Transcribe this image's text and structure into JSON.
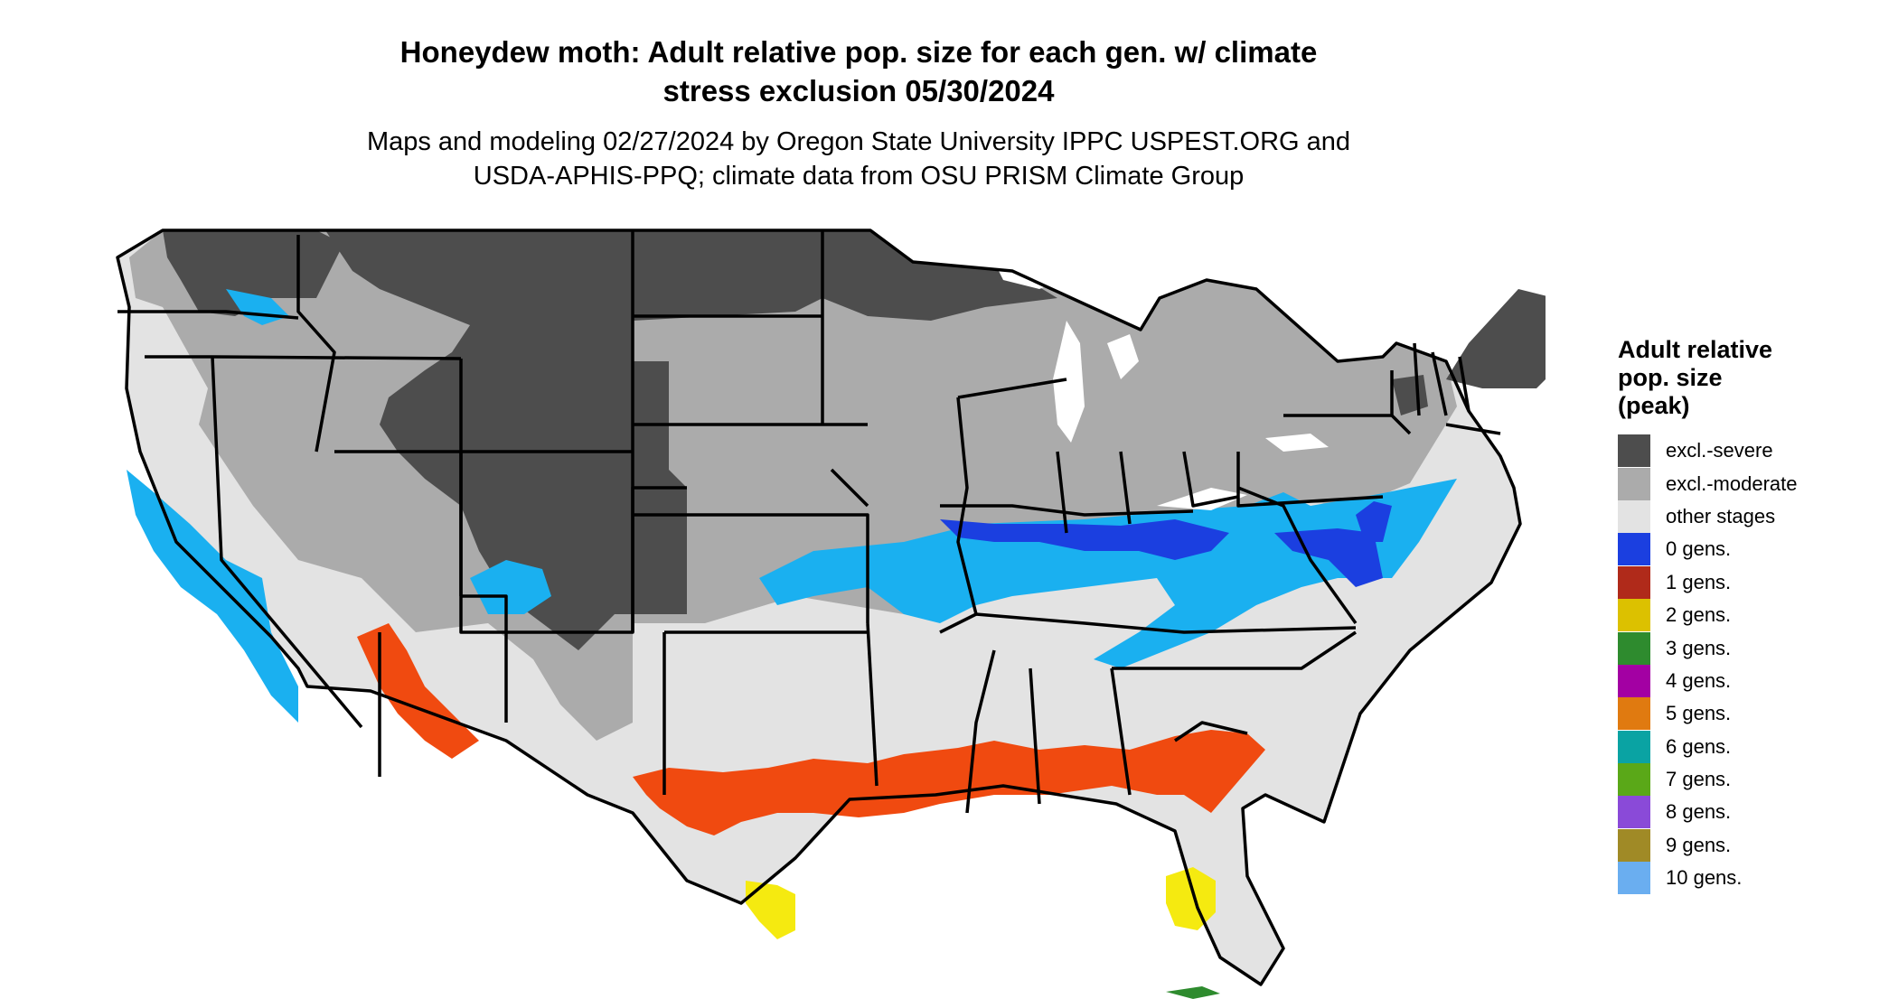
{
  "title_line1": "Honeydew moth: Adult relative pop. size for each gen. w/ climate",
  "title_line2": "stress exclusion 05/30/2024",
  "subtitle_line1": "Maps and modeling 02/27/2024 by Oregon State University IPPC USPEST.ORG and",
  "subtitle_line2": "USDA-APHIS-PPQ; climate data from OSU PRISM Climate Group",
  "legend": {
    "title_lines": [
      "Adult relative",
      "pop. size",
      "(peak)"
    ],
    "items": [
      {
        "label": "excl.-severe",
        "color": "#4d4d4d"
      },
      {
        "label": "excl.-moderate",
        "color": "#ababab"
      },
      {
        "label": "other stages",
        "color": "#e3e3e3"
      },
      {
        "label": "0 gens.",
        "color": "#1b3fe0"
      },
      {
        "label": "1 gens.",
        "color": "#b02a1a"
      },
      {
        "label": "2 gens.",
        "color": "#dcc100"
      },
      {
        "label": "3 gens.",
        "color": "#2e8b2e"
      },
      {
        "label": "4 gens.",
        "color": "#a300a3"
      },
      {
        "label": "5 gens.",
        "color": "#e07a10"
      },
      {
        "label": "6 gens.",
        "color": "#0aa3a3"
      },
      {
        "label": "7 gens.",
        "color": "#5aa818"
      },
      {
        "label": "8 gens.",
        "color": "#8a4ad8"
      },
      {
        "label": "9 gens.",
        "color": "#a08a26"
      },
      {
        "label": "10 gens.",
        "color": "#6aaef0"
      }
    ]
  },
  "map_colors": {
    "border": "#000000",
    "severe": "#4d4d4d",
    "moderate": "#ababab",
    "other": "#e3e3e3",
    "light_blue": "#1ab0f0",
    "blue": "#1b3fe0",
    "orange_red": "#f04a10",
    "yellow": "#f5ea10",
    "green": "#2e8b2e"
  }
}
